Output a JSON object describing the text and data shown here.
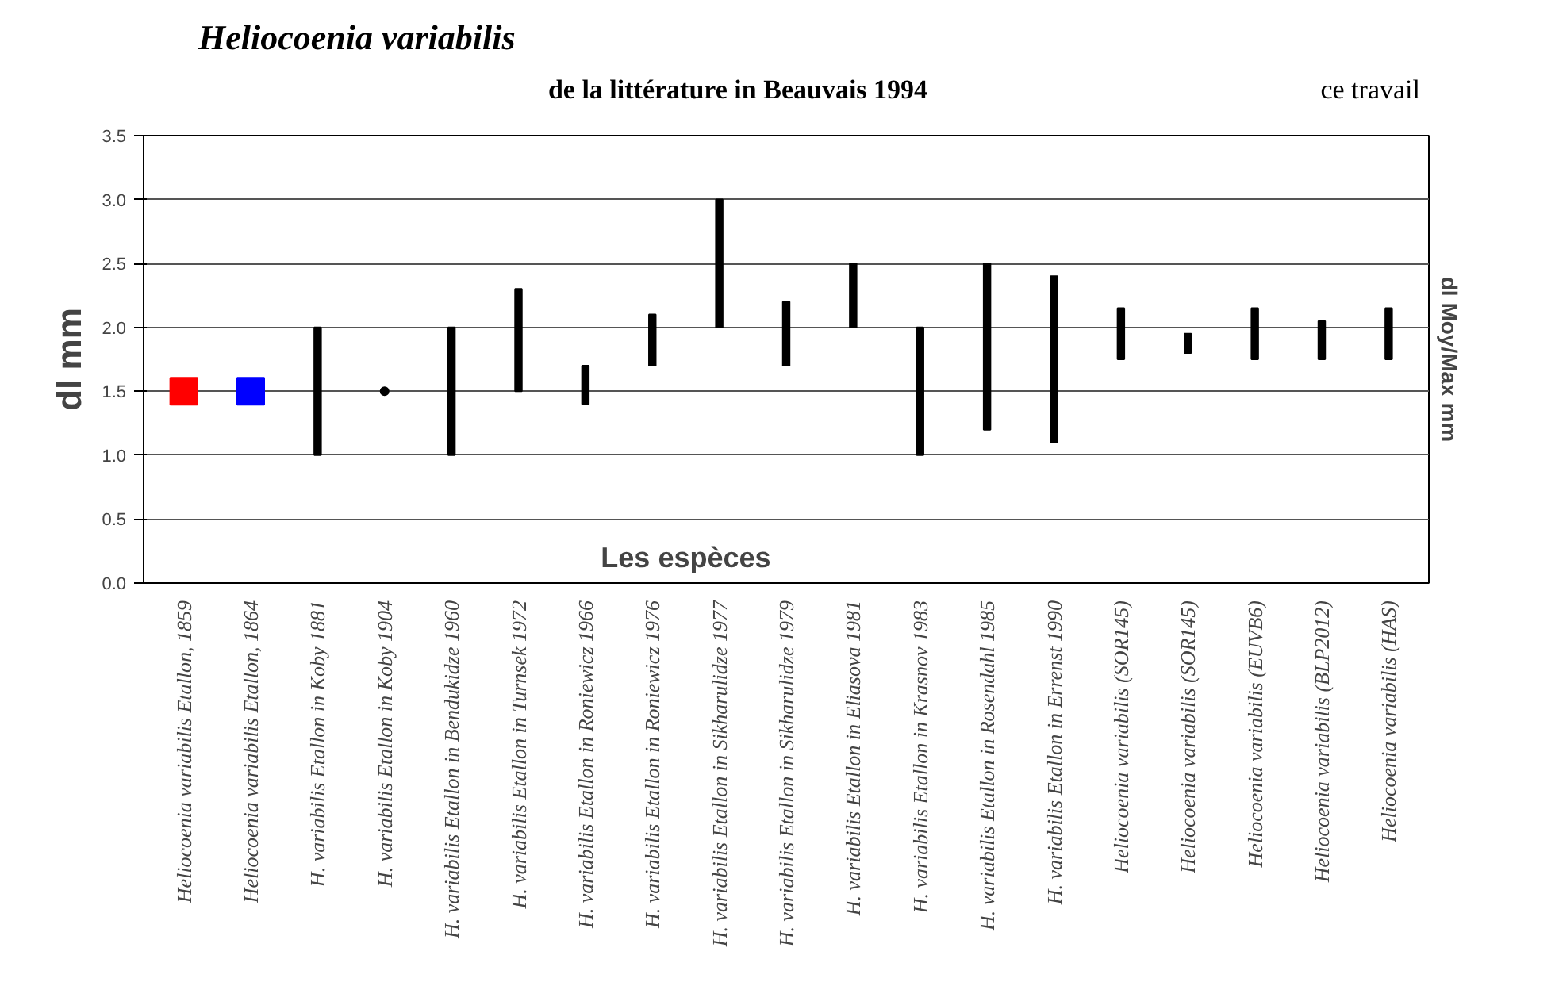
{
  "chart_data": {
    "type": "bar",
    "title": "Heliocoenia variabilis",
    "subtitle": "de la littérature in Beauvais 1994",
    "xlabel": "Les espèces",
    "ylabel": "dl mm",
    "y2label": "dl Moy/Max mm",
    "annotations": [
      "ce travail"
    ],
    "categories": [
      "Heliocoenia variabilis Etallon, 1859",
      "Heliocoenia variabilis Etallon, 1864",
      "H. variabilis Etallon in Koby 1881",
      "H. variabilis Etallon in Koby 1904",
      "H. variabilis Etallon in Bendukidze 1960",
      "H. variabilis Etallon in Turnsek 1972",
      "H. variabilis Etallon in Roniewicz 1966",
      "H. variabilis Etallon in Roniewicz 1976",
      "H. variabilis Etallon in Sikharulidze 1977",
      "H. variabilis Etallon in Sikharulidze 1979",
      "H. variabilis Etallon in Eliasova 1981",
      "H. variabilis Etallon in Krasnov 1983",
      "H. variabilis Etallon in Rosendahl 1985",
      "H. variabilis Etallon in Errenst 1990",
      "Heliocoenia variabilis (SOR145)",
      "Heliocoenia variabilis (SOR145)",
      "Heliocoenia variabilis (EUVB6)",
      "Heliocoenia variabilis (BLP2012)",
      "Heliocoenia variabilis (HAS)"
    ],
    "ylim": [
      0,
      3.5
    ],
    "yticks": [
      {
        "value": 0,
        "label": "0.0"
      },
      {
        "value": 0.5,
        "label": "0.5"
      },
      {
        "value": 1,
        "label": "1.0"
      },
      {
        "value": 1.5,
        "label": "1.5"
      },
      {
        "value": 2,
        "label": "2.0"
      },
      {
        "value": 2.5,
        "label": "2.5"
      },
      {
        "value": 3,
        "label": "3.0"
      },
      {
        "value": 3.5,
        "label": "3.5"
      }
    ],
    "grid": "y",
    "series": [
      {
        "color": "#000000",
        "base": [
          null,
          null,
          1.0,
          null,
          1.0,
          1.5,
          1.4,
          1.7,
          2.0,
          1.7,
          2.0,
          1.0,
          1.2,
          1.1,
          1.75,
          1.8,
          1.75,
          1.75,
          1.75
        ],
        "values": [
          null,
          null,
          1.0,
          null,
          1.0,
          0.8,
          0.3,
          0.4,
          1.0,
          0.5,
          0.5,
          1.0,
          1.3,
          1.3,
          0.4,
          0.15,
          0.4,
          0.3,
          0.4
        ]
      },
      {
        "type": "scatter",
        "marker": "square",
        "colors": [
          "#ff0000",
          "#0000ff",
          null,
          null,
          null,
          null,
          null,
          null,
          null,
          null,
          null,
          null,
          null,
          null,
          null,
          null,
          null,
          null,
          null
        ],
        "values": [
          1.5,
          1.5,
          null,
          null,
          null,
          null,
          null,
          null,
          null,
          null,
          null,
          null,
          null,
          null,
          null,
          null,
          null,
          null,
          null
        ]
      },
      {
        "type": "scatter",
        "marker": "circle",
        "color": "#000000",
        "values": [
          null,
          null,
          null,
          1.5,
          null,
          null,
          null,
          null,
          null,
          null,
          null,
          null,
          null,
          null,
          null,
          null,
          null,
          null,
          null
        ]
      }
    ]
  }
}
